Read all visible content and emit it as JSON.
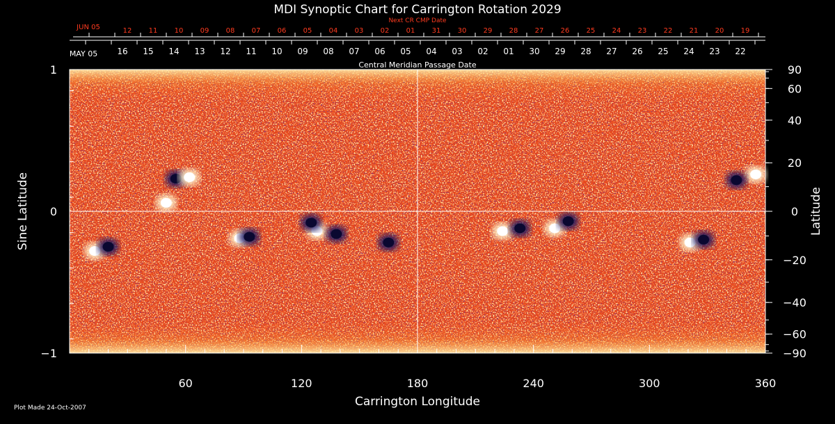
{
  "chart_data": {
    "type": "heatmap",
    "title": "MDI Synoptic Chart for Carrington Rotation 2029",
    "xlabel": "Carrington Longitude",
    "ylabel_left": "Sine Latitude",
    "ylabel_right": "Latitude",
    "xlim": [
      0,
      360
    ],
    "ylim": [
      -1,
      1
    ],
    "x_ticks": [
      60,
      120,
      180,
      240,
      300,
      360
    ],
    "y_ticks_left": [
      {
        "value": 1,
        "label": "1"
      },
      {
        "value": 0,
        "label": "0"
      },
      {
        "value": -1,
        "label": "−1"
      }
    ],
    "y_ticks_right": [
      {
        "deg": 90,
        "label": "90"
      },
      {
        "deg": 60,
        "label": "60"
      },
      {
        "deg": 40,
        "label": "40"
      },
      {
        "deg": 20,
        "label": "20"
      },
      {
        "deg": 0,
        "label": "0"
      },
      {
        "deg": -20,
        "label": "−20"
      },
      {
        "deg": -40,
        "label": "−40"
      },
      {
        "deg": -60,
        "label": "−60"
      },
      {
        "deg": -90,
        "label": "−90"
      }
    ],
    "next_cr_label": "Next CR CMP Date",
    "next_cr_start_label": "JUN 05",
    "next_cr_dates": [
      "12",
      "11",
      "10",
      "09",
      "08",
      "07",
      "06",
      "05",
      "04",
      "03",
      "02",
      "01",
      "31",
      "30",
      "29",
      "28",
      "27",
      "26",
      "25",
      "24",
      "23",
      "22",
      "21",
      "20",
      "19"
    ],
    "cmp_label": "Central Meridian Passage Date",
    "cmp_start_label": "MAY 05",
    "cmp_dates": [
      "16",
      "15",
      "14",
      "13",
      "12",
      "11",
      "10",
      "09",
      "08",
      "07",
      "06",
      "05",
      "04",
      "03",
      "02",
      "01",
      "30",
      "29",
      "28",
      "27",
      "26",
      "25",
      "24",
      "23",
      "22"
    ],
    "grid": "center cross at 180° longitude and 0 sine latitude",
    "colors": {
      "background": "#000000",
      "base": "#e8461a",
      "positive": "#fff6d0",
      "negative": "#1a1460",
      "red_text": "#ff3b1f"
    },
    "active_regions": [
      {
        "lon": 55,
        "sinlat": 0.23,
        "polarity": "negative"
      },
      {
        "lon": 62,
        "sinlat": 0.24,
        "polarity": "positive"
      },
      {
        "lon": 50,
        "sinlat": 0.06,
        "polarity": "positive"
      },
      {
        "lon": 13,
        "sinlat": -0.28,
        "polarity": "positive"
      },
      {
        "lon": 20,
        "sinlat": -0.25,
        "polarity": "negative"
      },
      {
        "lon": 88,
        "sinlat": -0.19,
        "polarity": "positive"
      },
      {
        "lon": 93,
        "sinlat": -0.18,
        "polarity": "negative"
      },
      {
        "lon": 128,
        "sinlat": -0.14,
        "polarity": "positive"
      },
      {
        "lon": 125,
        "sinlat": -0.08,
        "polarity": "negative"
      },
      {
        "lon": 138,
        "sinlat": -0.16,
        "polarity": "negative"
      },
      {
        "lon": 165,
        "sinlat": -0.22,
        "polarity": "negative"
      },
      {
        "lon": 224,
        "sinlat": -0.14,
        "polarity": "positive"
      },
      {
        "lon": 233,
        "sinlat": -0.12,
        "polarity": "negative"
      },
      {
        "lon": 251,
        "sinlat": -0.12,
        "polarity": "positive"
      },
      {
        "lon": 258,
        "sinlat": -0.07,
        "polarity": "negative"
      },
      {
        "lon": 321,
        "sinlat": -0.22,
        "polarity": "positive"
      },
      {
        "lon": 328,
        "sinlat": -0.2,
        "polarity": "negative"
      },
      {
        "lon": 355,
        "sinlat": 0.26,
        "polarity": "positive"
      },
      {
        "lon": 345,
        "sinlat": 0.22,
        "polarity": "negative"
      }
    ]
  },
  "footer": {
    "plot_made": "Plot Made 24-Oct-2007"
  }
}
